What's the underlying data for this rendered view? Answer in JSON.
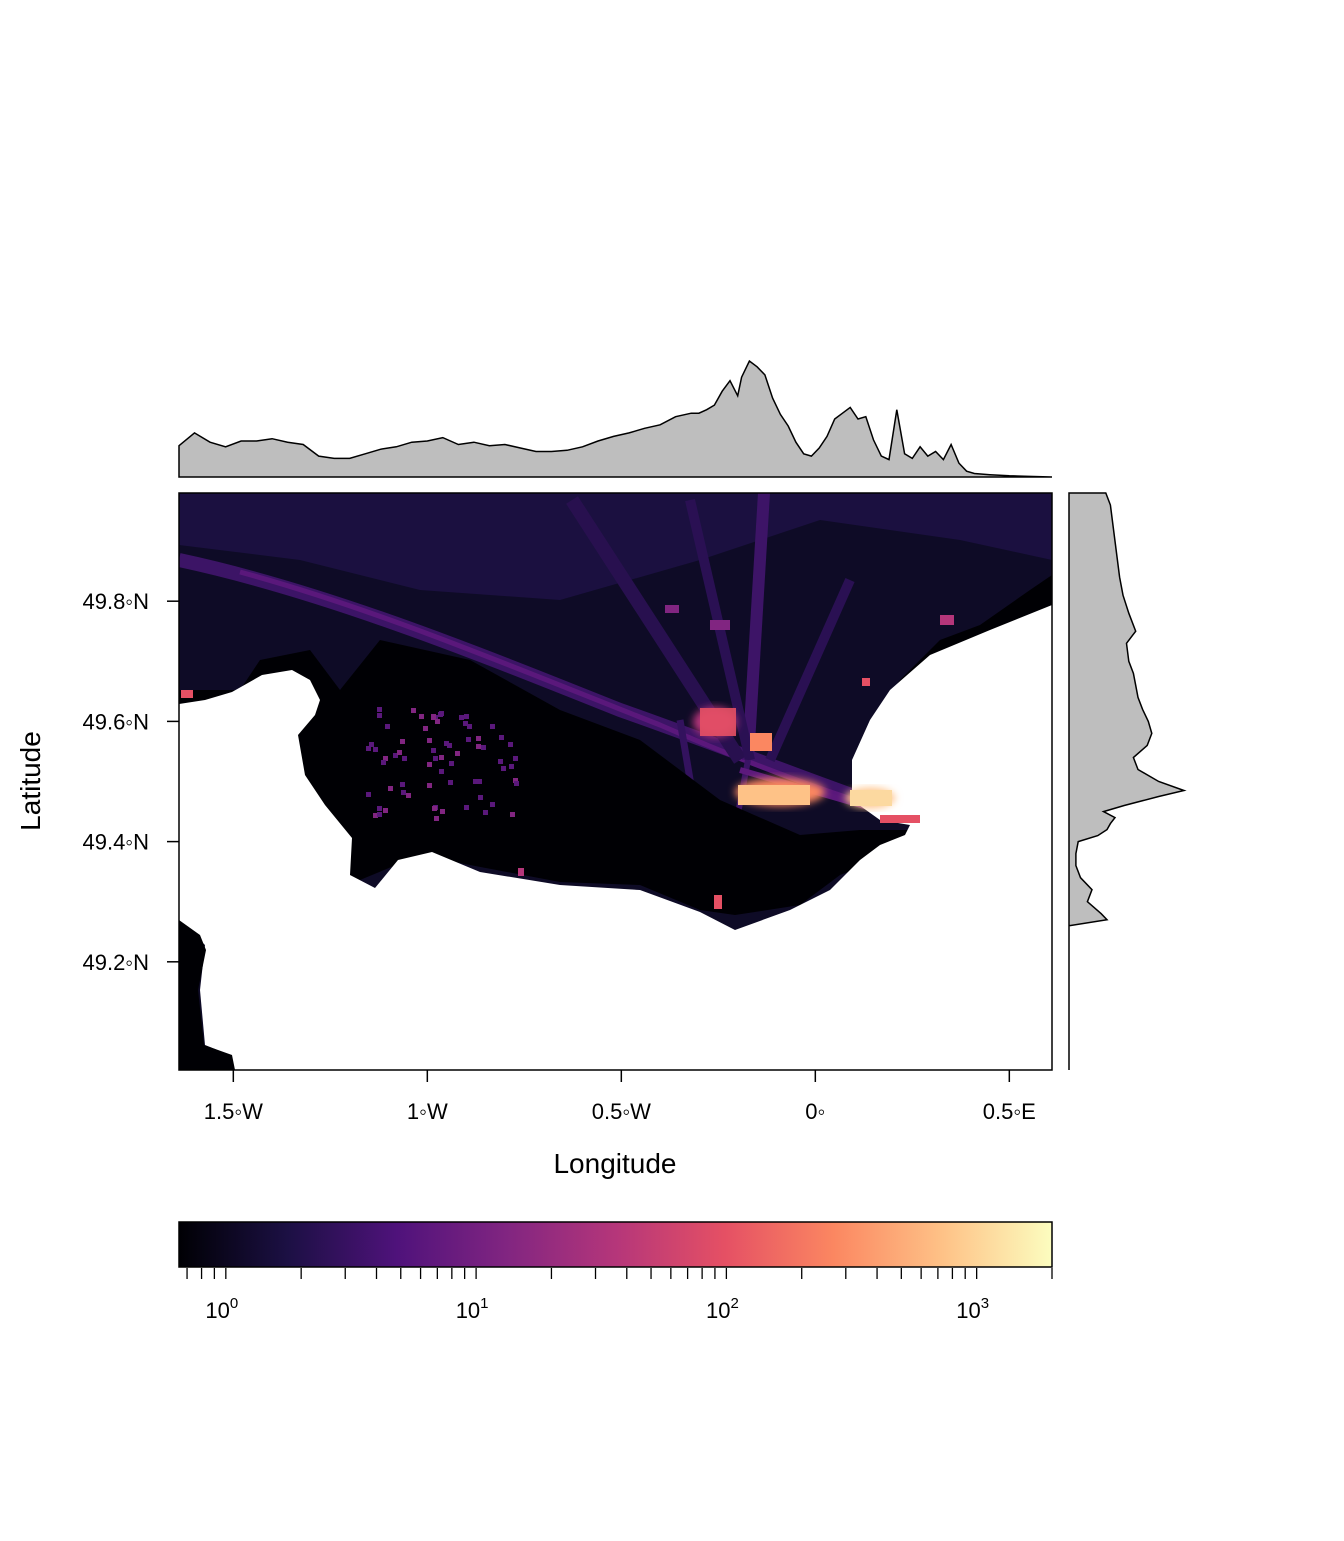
{
  "chart_data": {
    "type": "heatmap",
    "title": "",
    "xlabel": "Longitude",
    "ylabel": "Latitude",
    "xlim": [
      -1.64,
      0.61
    ],
    "ylim": [
      49.02,
      49.98
    ],
    "x_ticks": [
      {
        "value": -1.5,
        "label": "1.5◦W"
      },
      {
        "value": -1.0,
        "label": "1◦W"
      },
      {
        "value": -0.5,
        "label": "0.5◦W"
      },
      {
        "value": 0.0,
        "label": "0◦"
      },
      {
        "value": 0.5,
        "label": "0.5◦E"
      }
    ],
    "y_ticks": [
      {
        "value": 49.2,
        "label": "49.2◦N"
      },
      {
        "value": 49.4,
        "label": "49.4◦N"
      },
      {
        "value": 49.6,
        "label": "49.6◦N"
      },
      {
        "value": 49.8,
        "label": "49.8◦N"
      }
    ],
    "colorbar": {
      "scale": "log10",
      "range": [
        0.65,
        2000
      ],
      "colormap": [
        "#000004",
        "#1c1044",
        "#4f127b",
        "#812581",
        "#b5367a",
        "#e55064",
        "#fb8761",
        "#fec287",
        "#fcfdbf"
      ],
      "major_ticks": [
        {
          "value": 1,
          "base": "10",
          "exp": "0"
        },
        {
          "value": 10,
          "base": "10",
          "exp": "1"
        },
        {
          "value": 100,
          "base": "10",
          "exp": "2"
        },
        {
          "value": 1000,
          "base": "10",
          "exp": "3"
        }
      ]
    },
    "colors": {
      "land": "#ffffff",
      "sea_background": "#0e0b26",
      "coastal_zero": "#000004",
      "marginal_fill": "#bebebe",
      "marginal_line": "#000000"
    },
    "marginal_x": {
      "lon": [
        -1.64,
        -1.6,
        -1.56,
        -1.52,
        -1.48,
        -1.44,
        -1.4,
        -1.36,
        -1.32,
        -1.28,
        -1.24,
        -1.2,
        -1.16,
        -1.12,
        -1.08,
        -1.04,
        -1.0,
        -0.96,
        -0.92,
        -0.88,
        -0.84,
        -0.8,
        -0.76,
        -0.72,
        -0.68,
        -0.64,
        -0.6,
        -0.56,
        -0.52,
        -0.48,
        -0.44,
        -0.4,
        -0.36,
        -0.32,
        -0.3,
        -0.28,
        -0.26,
        -0.24,
        -0.22,
        -0.2,
        -0.19,
        -0.17,
        -0.15,
        -0.13,
        -0.11,
        -0.09,
        -0.07,
        -0.05,
        -0.03,
        -0.01,
        0.01,
        0.03,
        0.05,
        0.07,
        0.09,
        0.11,
        0.13,
        0.15,
        0.17,
        0.19,
        0.21,
        0.23,
        0.25,
        0.27,
        0.29,
        0.31,
        0.33,
        0.35,
        0.37,
        0.39,
        0.41,
        0.45,
        0.5,
        0.55,
        0.61
      ],
      "density": [
        0.27,
        0.38,
        0.3,
        0.26,
        0.31,
        0.31,
        0.33,
        0.3,
        0.28,
        0.18,
        0.16,
        0.16,
        0.2,
        0.24,
        0.26,
        0.3,
        0.31,
        0.34,
        0.28,
        0.3,
        0.27,
        0.28,
        0.25,
        0.22,
        0.22,
        0.23,
        0.26,
        0.31,
        0.35,
        0.38,
        0.42,
        0.45,
        0.52,
        0.55,
        0.55,
        0.58,
        0.62,
        0.74,
        0.83,
        0.7,
        0.86,
        1.0,
        0.95,
        0.88,
        0.68,
        0.54,
        0.44,
        0.3,
        0.2,
        0.18,
        0.25,
        0.35,
        0.5,
        0.55,
        0.6,
        0.5,
        0.52,
        0.32,
        0.18,
        0.15,
        0.58,
        0.2,
        0.16,
        0.26,
        0.18,
        0.22,
        0.15,
        0.28,
        0.12,
        0.05,
        0.03,
        0.02,
        0.01,
        0.005,
        0.0
      ]
    },
    "marginal_y": {
      "lat": [
        49.98,
        49.96,
        49.93,
        49.9,
        49.87,
        49.84,
        49.81,
        49.78,
        49.75,
        49.73,
        49.7,
        49.68,
        49.66,
        49.64,
        49.62,
        49.6,
        49.58,
        49.56,
        49.54,
        49.52,
        49.5,
        49.485,
        49.475,
        49.46,
        49.45,
        49.44,
        49.43,
        49.42,
        49.41,
        49.4,
        49.38,
        49.36,
        49.34,
        49.32,
        49.3,
        49.28,
        49.27,
        49.26,
        49.2,
        49.1,
        49.02
      ],
      "density": [
        0.32,
        0.36,
        0.38,
        0.4,
        0.42,
        0.44,
        0.47,
        0.52,
        0.58,
        0.5,
        0.52,
        0.56,
        0.58,
        0.6,
        0.64,
        0.69,
        0.72,
        0.68,
        0.56,
        0.6,
        0.78,
        1.0,
        0.78,
        0.48,
        0.3,
        0.4,
        0.36,
        0.33,
        0.25,
        0.08,
        0.06,
        0.06,
        0.1,
        0.2,
        0.16,
        0.28,
        0.33,
        0.0,
        0.0,
        0.0,
        0.0
      ]
    }
  }
}
